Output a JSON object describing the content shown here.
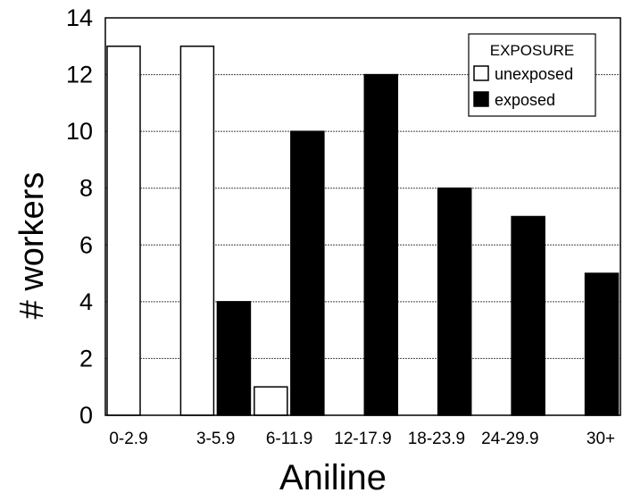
{
  "chart_data": {
    "type": "bar",
    "title": "",
    "xlabel": "Aniline",
    "ylabel": "# workers",
    "categories": [
      "0-2.9",
      "3-5.9",
      "6-11.9",
      "12-17.9",
      "18-23.9",
      "24-29.9",
      "30+"
    ],
    "series": [
      {
        "name": "unexposed",
        "values": [
          13,
          13,
          1,
          0,
          0,
          0,
          0
        ],
        "color": "#ffffff"
      },
      {
        "name": "exposed",
        "values": [
          0,
          4,
          10,
          12,
          8,
          7,
          5
        ],
        "color": "#000000"
      }
    ],
    "ylim": [
      0,
      14
    ],
    "yticks": [
      0,
      2,
      4,
      6,
      8,
      10,
      12,
      14
    ],
    "grid": true,
    "legend": {
      "title": "EXPOSURE",
      "placement": "top-right"
    }
  }
}
